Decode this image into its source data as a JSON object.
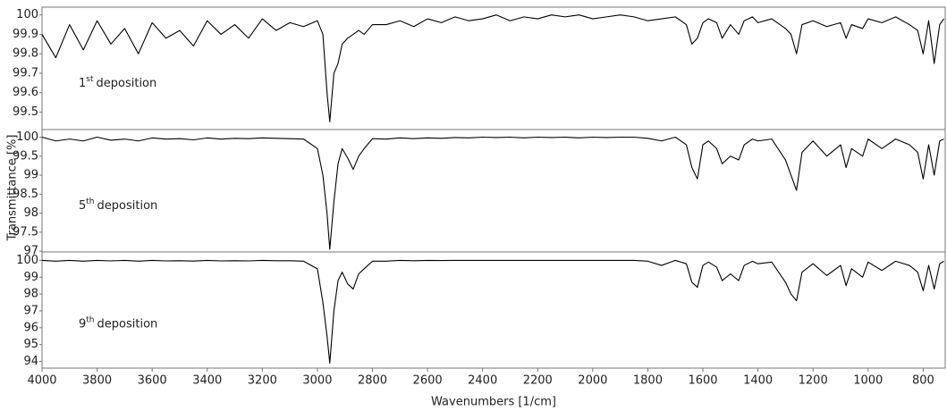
{
  "ylabel": "Transmittance [%]",
  "chart_data": [
    {
      "type": "line",
      "annotation": {
        "base": "1",
        "sup": "st",
        "text": "deposition"
      },
      "color": "#000000",
      "x": [
        4000,
        3950,
        3900,
        3850,
        3800,
        3750,
        3700,
        3650,
        3600,
        3550,
        3500,
        3450,
        3400,
        3350,
        3300,
        3250,
        3200,
        3150,
        3100,
        3050,
        3000,
        2980,
        2965,
        2955,
        2940,
        2925,
        2910,
        2890,
        2870,
        2850,
        2830,
        2800,
        2750,
        2700,
        2650,
        2600,
        2550,
        2500,
        2450,
        2400,
        2350,
        2300,
        2250,
        2200,
        2150,
        2100,
        2050,
        2000,
        1950,
        1900,
        1850,
        1800,
        1750,
        1700,
        1660,
        1640,
        1620,
        1600,
        1580,
        1550,
        1530,
        1500,
        1470,
        1450,
        1420,
        1400,
        1350,
        1300,
        1280,
        1260,
        1240,
        1200,
        1150,
        1100,
        1080,
        1060,
        1020,
        1000,
        950,
        900,
        850,
        820,
        800,
        780,
        760,
        740,
        725
      ],
      "values": [
        99.9,
        99.78,
        99.95,
        99.82,
        99.97,
        99.85,
        99.93,
        99.8,
        99.96,
        99.88,
        99.92,
        99.84,
        99.97,
        99.9,
        99.95,
        99.88,
        99.98,
        99.92,
        99.96,
        99.94,
        99.97,
        99.9,
        99.6,
        99.45,
        99.7,
        99.75,
        99.85,
        99.88,
        99.9,
        99.92,
        99.9,
        99.95,
        99.95,
        99.97,
        99.94,
        99.98,
        99.96,
        99.99,
        99.97,
        99.98,
        100,
        99.97,
        99.99,
        99.98,
        100,
        99.99,
        100,
        99.98,
        99.99,
        100,
        99.99,
        99.97,
        99.98,
        99.99,
        99.95,
        99.85,
        99.88,
        99.96,
        99.98,
        99.96,
        99.88,
        99.95,
        99.9,
        99.97,
        99.99,
        99.96,
        99.98,
        99.93,
        99.9,
        99.8,
        99.95,
        99.97,
        99.94,
        99.96,
        99.88,
        99.95,
        99.93,
        99.98,
        99.96,
        99.99,
        99.95,
        99.92,
        99.8,
        99.97,
        99.75,
        99.95,
        99.98
      ],
      "xlim": [
        4000,
        720
      ],
      "ylim": [
        99.41,
        100.04
      ],
      "yticks": [
        100,
        99.9,
        99.8,
        99.7,
        99.6,
        99.5
      ]
    },
    {
      "type": "line",
      "annotation": {
        "base": "5",
        "sup": "th",
        "text": "deposition"
      },
      "color": "#000000",
      "x": [
        4000,
        3950,
        3900,
        3850,
        3800,
        3750,
        3700,
        3650,
        3600,
        3550,
        3500,
        3450,
        3400,
        3350,
        3300,
        3250,
        3200,
        3150,
        3100,
        3050,
        3000,
        2980,
        2965,
        2955,
        2940,
        2925,
        2910,
        2890,
        2870,
        2850,
        2830,
        2800,
        2750,
        2700,
        2650,
        2600,
        2550,
        2500,
        2450,
        2400,
        2350,
        2300,
        2250,
        2200,
        2150,
        2100,
        2050,
        2000,
        1950,
        1900,
        1850,
        1800,
        1750,
        1700,
        1660,
        1640,
        1620,
        1600,
        1580,
        1550,
        1530,
        1500,
        1470,
        1450,
        1420,
        1400,
        1350,
        1300,
        1280,
        1260,
        1240,
        1200,
        1150,
        1100,
        1080,
        1060,
        1020,
        1000,
        950,
        900,
        850,
        820,
        800,
        780,
        760,
        740,
        725
      ],
      "values": [
        100,
        99.9,
        99.95,
        99.9,
        100,
        99.92,
        99.95,
        99.9,
        99.98,
        99.95,
        99.96,
        99.93,
        99.98,
        99.95,
        99.97,
        99.96,
        99.98,
        99.97,
        99.96,
        99.95,
        99.7,
        99.0,
        98.0,
        97.05,
        98.3,
        99.3,
        99.7,
        99.45,
        99.15,
        99.5,
        99.7,
        99.96,
        99.95,
        99.98,
        99.96,
        99.98,
        99.97,
        99.99,
        99.98,
        100,
        99.99,
        100,
        99.98,
        100,
        99.99,
        100,
        99.98,
        100,
        99.99,
        100,
        100,
        99.97,
        99.9,
        100,
        99.8,
        99.2,
        98.9,
        99.8,
        99.9,
        99.7,
        99.3,
        99.5,
        99.4,
        99.8,
        99.95,
        99.9,
        99.95,
        99.4,
        99.0,
        98.6,
        99.6,
        99.9,
        99.5,
        99.8,
        99.2,
        99.7,
        99.5,
        99.95,
        99.7,
        99.95,
        99.8,
        99.6,
        98.9,
        99.8,
        99.0,
        99.9,
        99.95
      ],
      "xlim": [
        4000,
        720
      ],
      "ylim": [
        96.98,
        100.2
      ],
      "yticks": [
        100,
        99.5,
        99,
        98.5,
        98,
        97.5,
        97
      ]
    },
    {
      "type": "line",
      "annotation": {
        "base": "9",
        "sup": "th",
        "text": "deposition"
      },
      "color": "#000000",
      "x": [
        4000,
        3950,
        3900,
        3850,
        3800,
        3750,
        3700,
        3650,
        3600,
        3550,
        3500,
        3450,
        3400,
        3350,
        3300,
        3250,
        3200,
        3150,
        3100,
        3050,
        3000,
        2980,
        2965,
        2955,
        2940,
        2925,
        2910,
        2890,
        2870,
        2850,
        2830,
        2800,
        2750,
        2700,
        2650,
        2600,
        2550,
        2500,
        2450,
        2400,
        2350,
        2300,
        2250,
        2200,
        2150,
        2100,
        2050,
        2000,
        1950,
        1900,
        1850,
        1800,
        1750,
        1700,
        1660,
        1640,
        1620,
        1600,
        1580,
        1550,
        1530,
        1500,
        1470,
        1450,
        1420,
        1400,
        1350,
        1300,
        1280,
        1260,
        1240,
        1200,
        1150,
        1100,
        1080,
        1060,
        1020,
        1000,
        950,
        900,
        850,
        820,
        800,
        780,
        760,
        740,
        725
      ],
      "values": [
        100,
        99.95,
        100,
        99.95,
        100,
        99.97,
        100,
        99.95,
        100,
        99.97,
        99.98,
        99.96,
        100,
        99.97,
        99.98,
        99.97,
        100,
        99.98,
        99.98,
        99.95,
        99.5,
        97.5,
        95.5,
        93.9,
        97,
        98.8,
        99.3,
        98.6,
        98.3,
        99.2,
        99.5,
        99.95,
        99.95,
        100,
        99.98,
        100,
        99.99,
        100,
        100,
        100,
        100,
        100,
        100,
        100,
        100,
        100,
        100,
        100,
        100,
        100,
        100,
        99.95,
        99.7,
        100,
        99.8,
        98.7,
        98.4,
        99.7,
        99.9,
        99.6,
        98.8,
        99.2,
        98.8,
        99.7,
        99.95,
        99.8,
        99.9,
        98.7,
        98.0,
        97.6,
        99.3,
        99.8,
        99.1,
        99.7,
        98.5,
        99.5,
        99.0,
        99.9,
        99.4,
        99.95,
        99.7,
        99.3,
        98.2,
        99.7,
        98.3,
        99.8,
        99.95
      ],
      "xlim": [
        4000,
        720
      ],
      "ylim": [
        93.6,
        100.5
      ],
      "yticks": [
        100,
        99,
        98,
        97,
        96,
        95,
        94
      ],
      "xticks": [
        4000,
        3800,
        3600,
        3400,
        3200,
        3000,
        2800,
        2600,
        2400,
        2200,
        2000,
        1800,
        1600,
        1400,
        1200,
        1000,
        800
      ],
      "xlabel": "Wavenumbers [1/cm]"
    }
  ]
}
